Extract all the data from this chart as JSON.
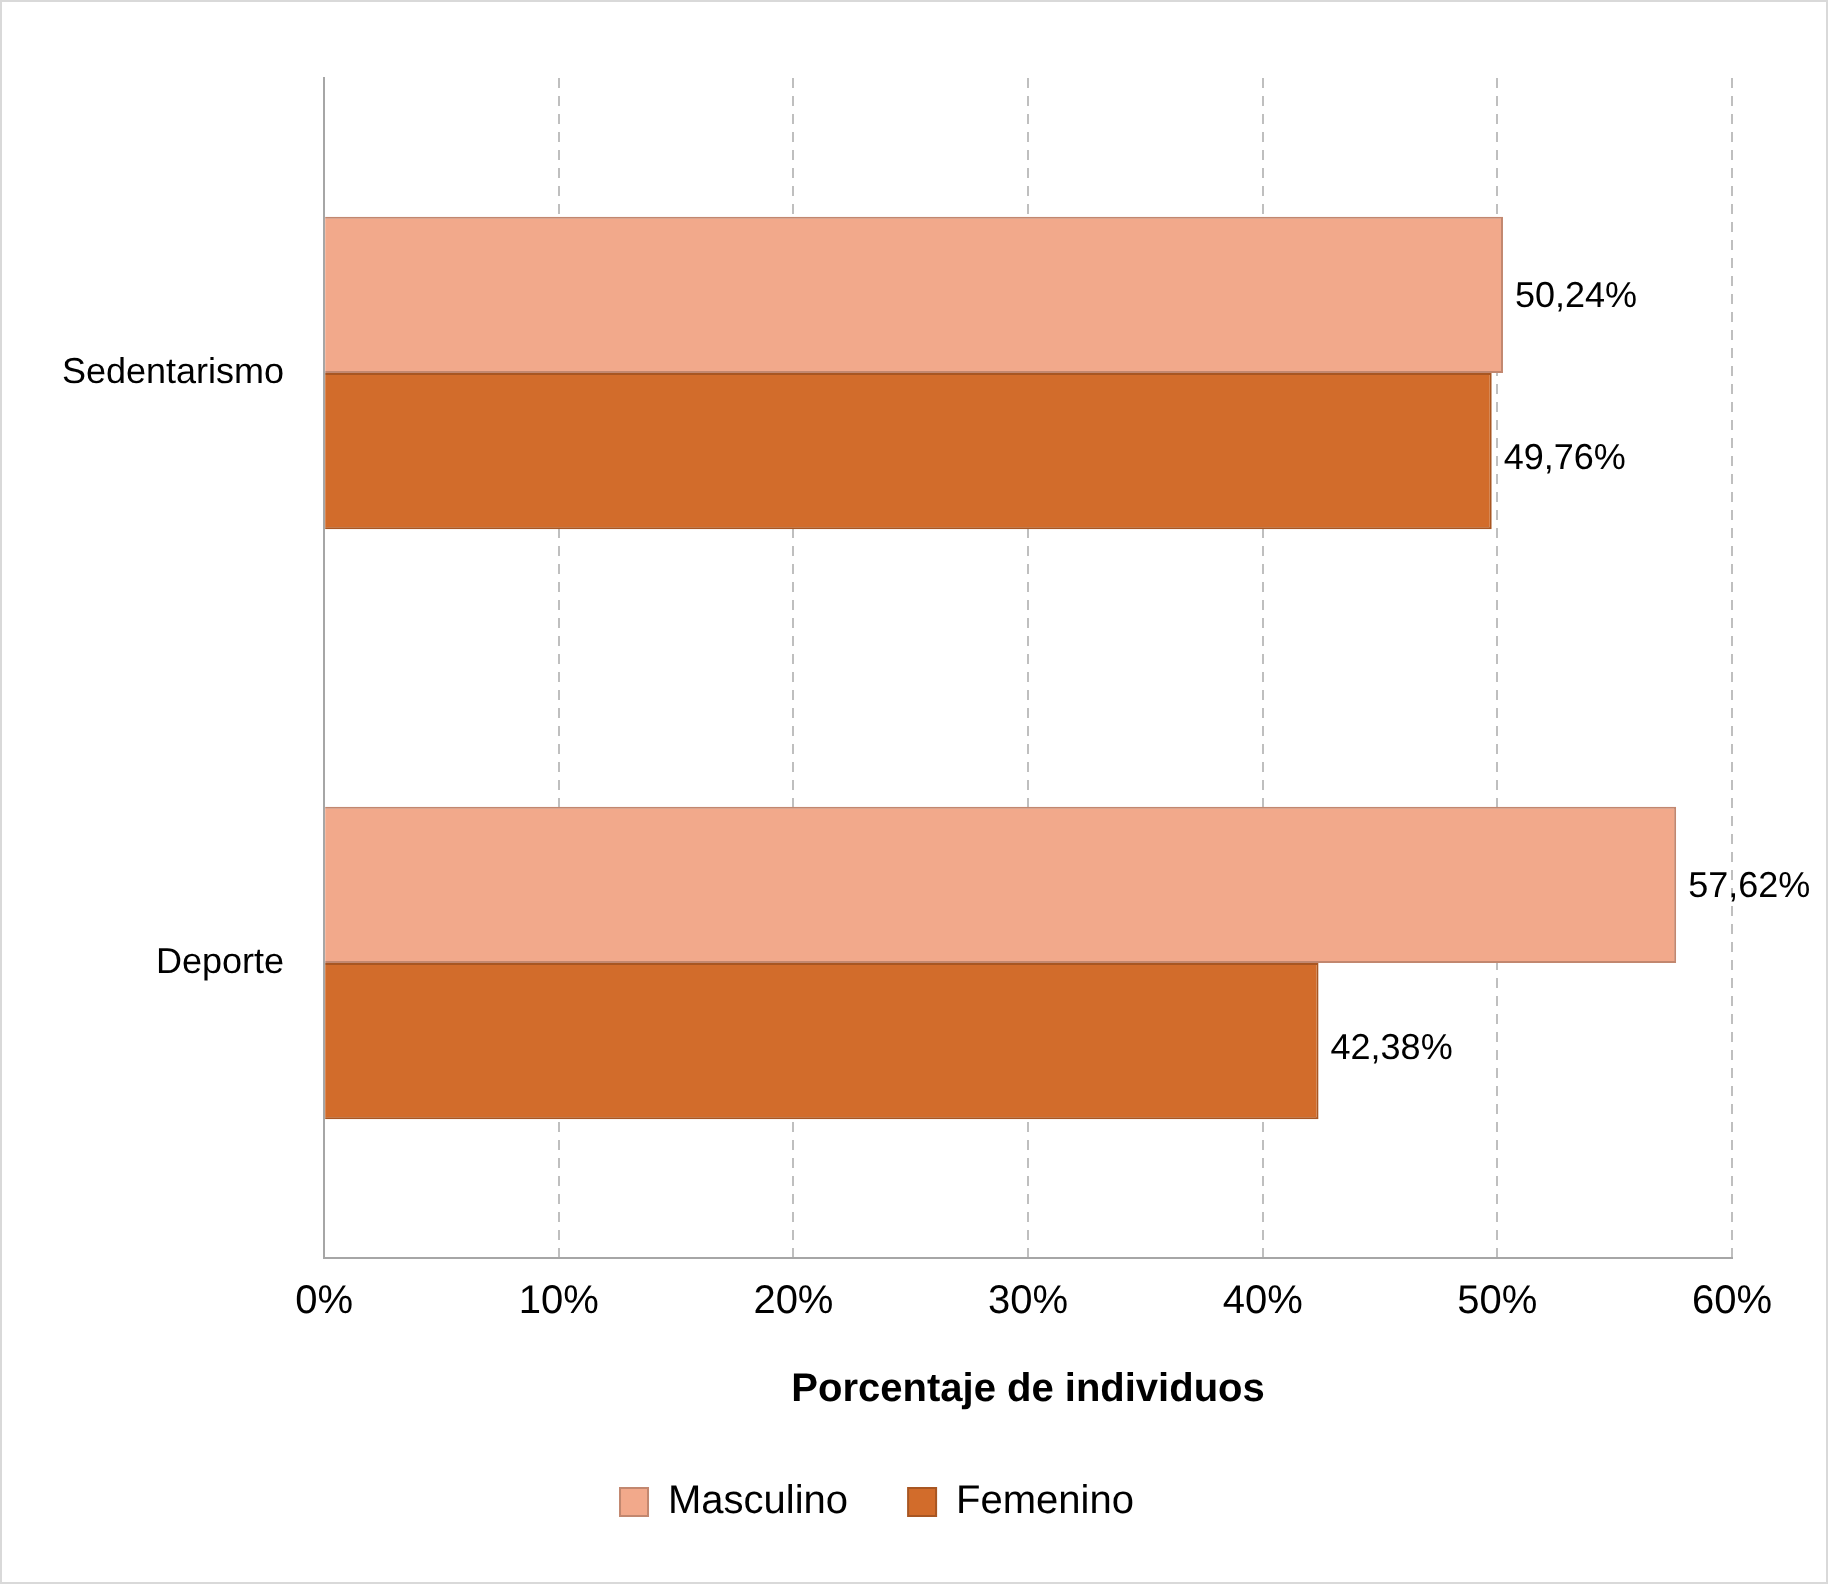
{
  "chart_data": {
    "type": "bar",
    "orientation": "horizontal",
    "xlabel": "Porcentaje de individuos",
    "categories": [
      "Sedentarismo",
      "Deporte"
    ],
    "series": [
      {
        "name": "Masculino",
        "color": "#f2a98b",
        "values": [
          50.24,
          57.62
        ],
        "value_labels": [
          "50,24%",
          "57,62%"
        ]
      },
      {
        "name": "Femenino",
        "color": "#d26c2b",
        "values": [
          49.76,
          42.38
        ],
        "value_labels": [
          "49,76%",
          "42,38%"
        ]
      }
    ],
    "xlim": [
      0,
      60
    ],
    "xticks": [
      {
        "value": 0,
        "label": "0%"
      },
      {
        "value": 10,
        "label": "10%"
      },
      {
        "value": 20,
        "label": "20%"
      },
      {
        "value": 30,
        "label": "30%"
      },
      {
        "value": 40,
        "label": "40%"
      },
      {
        "value": 50,
        "label": "50%"
      },
      {
        "value": 60,
        "label": "60%"
      }
    ],
    "grid": "x",
    "legend": "bottom"
  }
}
